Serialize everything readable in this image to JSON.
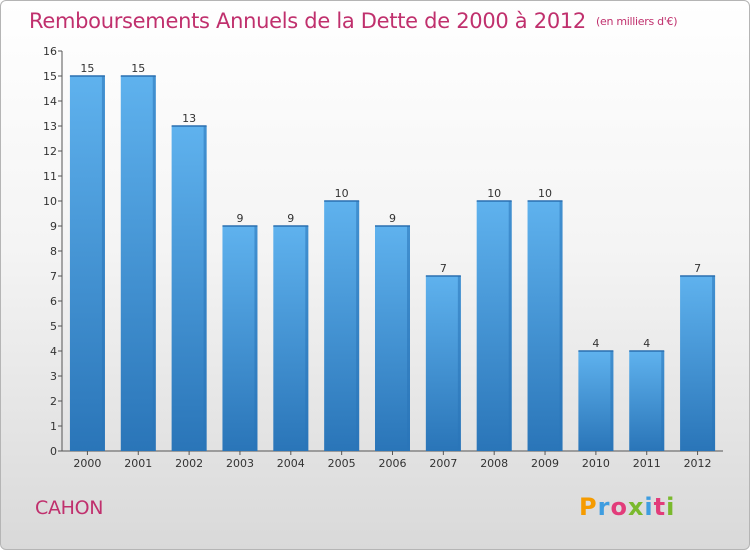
{
  "title": "Remboursements Annuels de la Dette de 2000 à 2012",
  "unit": "(en milliers d'€)",
  "commune": "CAHON",
  "logo": {
    "text": "Proxiti",
    "colors": [
      "#f59b00",
      "#3e9de0",
      "#e23c7a",
      "#7ab92d",
      "#3e9de0",
      "#e23c7a",
      "#7ab92d"
    ]
  },
  "colors": {
    "bar": "#3a8fd6",
    "bar_light": "#5fb2ee",
    "bar_dark": "#2a75b8",
    "title": "#c0306d"
  },
  "chart_data": {
    "type": "bar",
    "categories": [
      "2000",
      "2001",
      "2002",
      "2003",
      "2004",
      "2005",
      "2006",
      "2007",
      "2008",
      "2009",
      "2010",
      "2011",
      "2012"
    ],
    "values": [
      15,
      15,
      13,
      9,
      9,
      10,
      9,
      7,
      10,
      10,
      4,
      4,
      7
    ],
    "data_labels": [
      "15",
      "15",
      "13",
      "9",
      "9",
      "10",
      "9",
      "7",
      "10",
      "10",
      "4",
      "4",
      "7"
    ],
    "ylim": [
      0,
      16
    ],
    "yticks": [
      0,
      1,
      2,
      3,
      4,
      5,
      6,
      7,
      8,
      9,
      10,
      11,
      12,
      13,
      14,
      15,
      16
    ],
    "grid": false,
    "xlabel": "",
    "ylabel": ""
  }
}
